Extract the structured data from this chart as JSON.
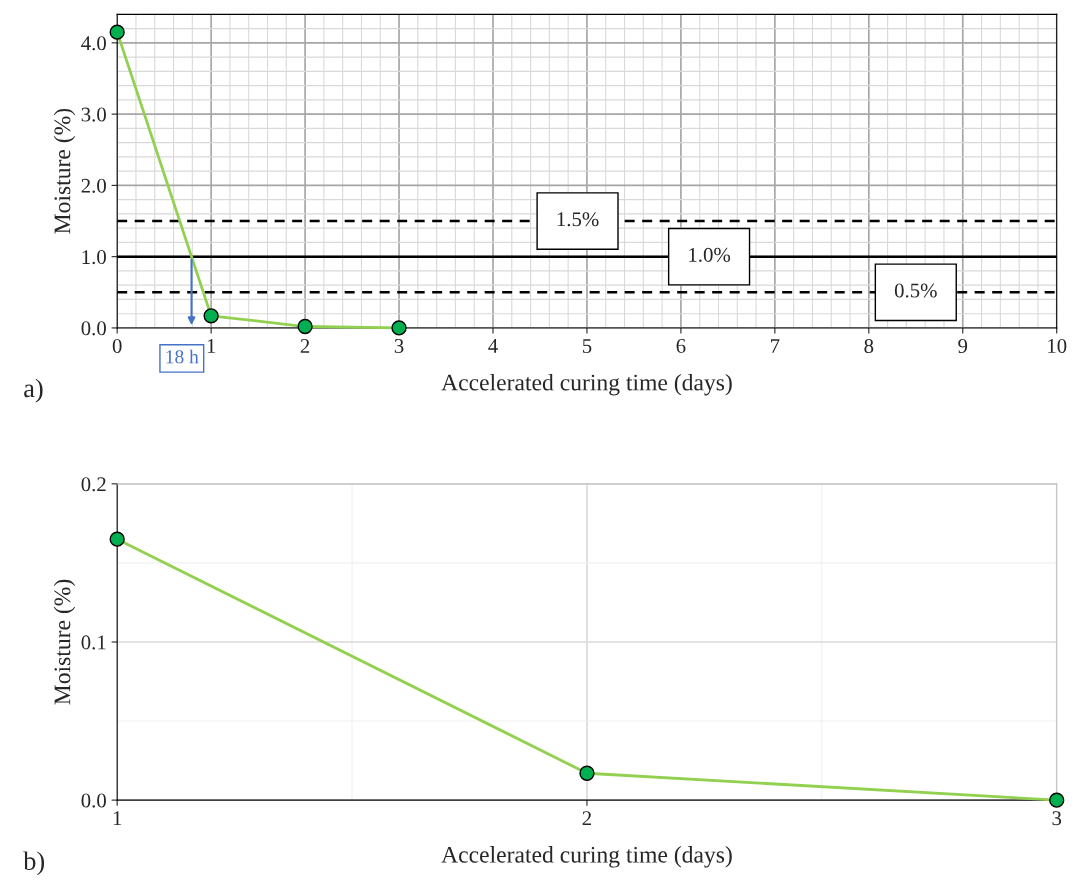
{
  "chart_data": [
    {
      "type": "line",
      "xlabel": "Accelerated curing time (days)",
      "ylabel": "Moisture (%)",
      "x": [
        0,
        1,
        2,
        3
      ],
      "series": [
        {
          "color": "#00b050",
          "values": [
            4.15,
            0.17,
            0.02,
            0.0
          ]
        }
      ],
      "xlim": [
        0,
        10
      ],
      "xticks": [
        0,
        1,
        2,
        3,
        4,
        5,
        6,
        7,
        8,
        9,
        10
      ],
      "ylim": [
        0,
        4.4
      ],
      "yticks": [
        {
          "value": 0,
          "label": "0.0"
        },
        {
          "value": 1,
          "label": "1.0"
        },
        {
          "value": 2,
          "label": "2.0"
        },
        {
          "value": 3,
          "label": "3.0"
        },
        {
          "value": 4,
          "label": "4.0"
        }
      ],
      "grid": true,
      "marker": "circle",
      "line_style": "solid",
      "ref_lines": [
        {
          "axis": "y",
          "value": 1.5,
          "label": "1.5%",
          "line_style": "dashed",
          "color": "#000000"
        },
        {
          "axis": "y",
          "value": 1.0,
          "label": "1.0%",
          "line_style": "solid",
          "color": "#000000"
        },
        {
          "axis": "y",
          "value": 0.5,
          "label": "0.5%",
          "line_style": "dashed",
          "color": "#000000"
        }
      ],
      "annotations": [
        "18 h",
        "a)"
      ]
    },
    {
      "type": "line",
      "xlabel": "Accelerated curing time (days)",
      "ylabel": "Moisture (%)",
      "x": [
        1,
        2,
        3
      ],
      "series": [
        {
          "color": "#00b050",
          "values": [
            0.165,
            0.017,
            0.0
          ]
        }
      ],
      "xlim": [
        1,
        3
      ],
      "xticks": [
        1,
        2,
        3
      ],
      "ylim": [
        0,
        0.2
      ],
      "yticks": [
        {
          "value": 0,
          "label": "0.0"
        },
        {
          "value": 0.1,
          "label": "0.1"
        },
        {
          "value": 0.2,
          "label": "0.2"
        }
      ],
      "grid": true,
      "marker": "circle",
      "line_style": "solid",
      "annotations": [
        "b)"
      ]
    }
  ]
}
